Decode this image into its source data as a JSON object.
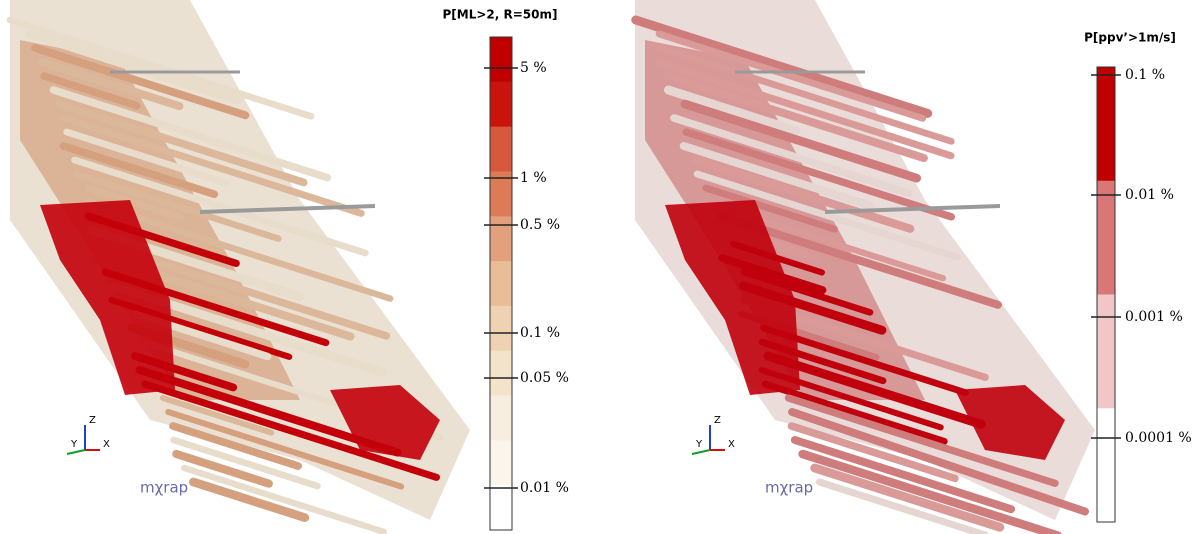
{
  "panels": [
    {
      "legend_title": "P[ML>2, R=50m]",
      "ticks": [
        "5 %",
        "1 %",
        "0.5 %",
        "0.1 %",
        "0.05 %",
        "0.01 %"
      ],
      "logo": "mχrap",
      "axes": {
        "x": "X",
        "y": "Y",
        "z": "Z"
      }
    },
    {
      "legend_title": "P[ppv’>1m/s]",
      "ticks": [
        "0.1 %",
        "0.01 %",
        "0.001 %",
        "0.0001 %"
      ],
      "logo": "mχrap",
      "axes": {
        "x": "X",
        "y": "Y",
        "z": "Z"
      }
    }
  ]
}
